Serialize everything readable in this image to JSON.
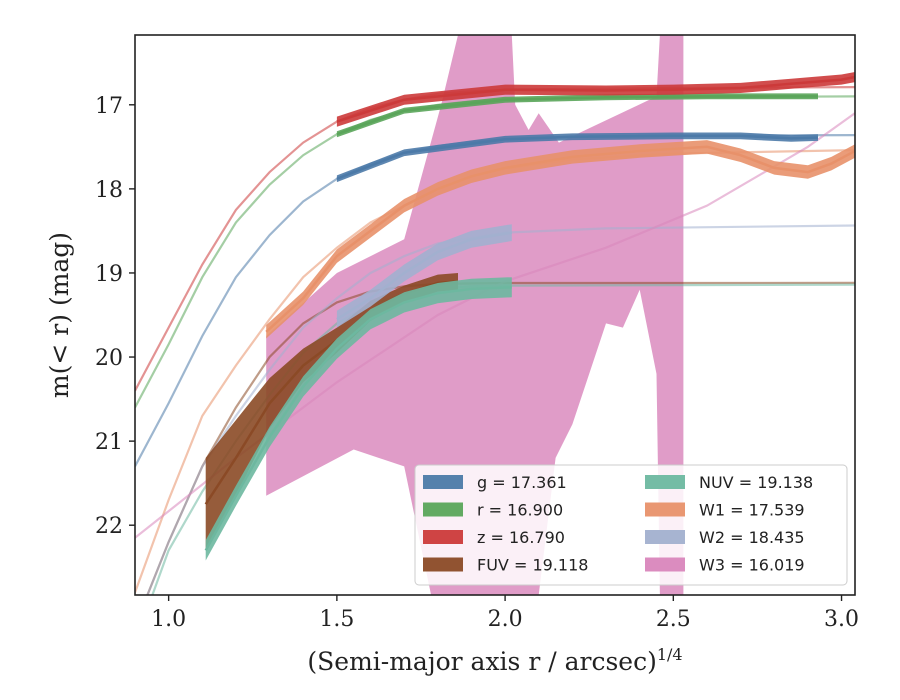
{
  "chart_data": {
    "type": "line",
    "xlabel": "(Semi-major axis r / arcsec)",
    "xlabel_sup": "1/4",
    "ylabel": "m(< r) (mag)",
    "xlim": [
      0.9,
      3.04
    ],
    "ylim": [
      22.83,
      16.17
    ],
    "xticks": [
      1.0,
      1.5,
      2.0,
      2.5,
      3.0
    ],
    "xtick_labels": [
      "1.0",
      "1.5",
      "2.0",
      "2.5",
      "3.0"
    ],
    "yticks": [
      17,
      18,
      19,
      20,
      21,
      22
    ],
    "ytick_labels": [
      "17",
      "18",
      "19",
      "20",
      "21",
      "22"
    ],
    "legend_position": "lower-right",
    "series": [
      {
        "band": "g",
        "label": "g = 17.361",
        "color": "#4c7aa8",
        "model": [
          [
            0.9,
            21.3
          ],
          [
            1.0,
            20.55
          ],
          [
            1.1,
            19.75
          ],
          [
            1.2,
            19.05
          ],
          [
            1.3,
            18.55
          ],
          [
            1.4,
            18.15
          ],
          [
            1.5,
            17.88
          ],
          [
            1.6,
            17.7
          ],
          [
            1.7,
            17.57
          ],
          [
            1.8,
            17.49
          ],
          [
            1.9,
            17.44
          ],
          [
            2.0,
            17.41
          ],
          [
            2.2,
            17.38
          ],
          [
            2.4,
            17.37
          ],
          [
            2.6,
            17.365
          ],
          [
            3.04,
            17.361
          ]
        ],
        "data": [
          [
            1.5,
            17.88
          ],
          [
            1.7,
            17.57
          ],
          [
            2.0,
            17.41
          ],
          [
            2.2,
            17.38
          ],
          [
            2.5,
            17.37
          ],
          [
            2.7,
            17.37
          ],
          [
            2.85,
            17.4
          ],
          [
            2.93,
            17.39
          ]
        ],
        "band_width": 0.04
      },
      {
        "band": "r",
        "label": "r = 16.900",
        "color": "#5aa55a",
        "model": [
          [
            0.9,
            20.6
          ],
          [
            1.0,
            19.85
          ],
          [
            1.1,
            19.05
          ],
          [
            1.2,
            18.4
          ],
          [
            1.3,
            17.95
          ],
          [
            1.4,
            17.6
          ],
          [
            1.5,
            17.35
          ],
          [
            1.6,
            17.18
          ],
          [
            1.7,
            17.07
          ],
          [
            1.8,
            17.0
          ],
          [
            1.9,
            16.96
          ],
          [
            2.0,
            16.94
          ],
          [
            2.2,
            16.92
          ],
          [
            2.5,
            16.91
          ],
          [
            3.04,
            16.9
          ]
        ],
        "data": [
          [
            1.5,
            17.35
          ],
          [
            1.7,
            17.07
          ],
          [
            2.0,
            16.94
          ],
          [
            2.3,
            16.91
          ],
          [
            2.6,
            16.9
          ],
          [
            2.8,
            16.9
          ],
          [
            2.93,
            16.9
          ]
        ],
        "band_width": 0.035
      },
      {
        "band": "z",
        "label": "z = 16.790",
        "color": "#cc3a3a",
        "model": [
          [
            0.9,
            20.4
          ],
          [
            1.0,
            19.65
          ],
          [
            1.1,
            18.9
          ],
          [
            1.2,
            18.25
          ],
          [
            1.3,
            17.8
          ],
          [
            1.4,
            17.45
          ],
          [
            1.5,
            17.2
          ],
          [
            1.6,
            17.04
          ],
          [
            1.7,
            16.94
          ],
          [
            1.8,
            16.87
          ],
          [
            1.9,
            16.84
          ],
          [
            2.0,
            16.82
          ],
          [
            2.2,
            16.81
          ],
          [
            2.5,
            16.8
          ],
          [
            3.04,
            16.79
          ]
        ],
        "data": [
          [
            1.5,
            17.2
          ],
          [
            1.7,
            16.94
          ],
          [
            2.0,
            16.82
          ],
          [
            2.3,
            16.83
          ],
          [
            2.5,
            16.82
          ],
          [
            2.7,
            16.8
          ],
          [
            2.85,
            16.75
          ],
          [
            3.0,
            16.7
          ],
          [
            3.04,
            16.67
          ]
        ],
        "band_width": 0.06
      },
      {
        "band": "FUV",
        "label": "FUV = 19.118",
        "color": "#8b4a26",
        "model": [
          [
            0.9,
            23.2
          ],
          [
            1.0,
            22.2
          ],
          [
            1.1,
            21.3
          ],
          [
            1.2,
            20.6
          ],
          [
            1.3,
            20.0
          ],
          [
            1.4,
            19.6
          ],
          [
            1.5,
            19.35
          ],
          [
            1.6,
            19.22
          ],
          [
            1.7,
            19.16
          ],
          [
            1.8,
            19.13
          ],
          [
            2.0,
            19.12
          ],
          [
            3.04,
            19.118
          ]
        ],
        "data": [
          [
            1.11,
            21.75
          ],
          [
            1.2,
            21.2
          ],
          [
            1.3,
            20.55
          ],
          [
            1.4,
            20.1
          ],
          [
            1.5,
            19.8
          ],
          [
            1.6,
            19.45
          ],
          [
            1.7,
            19.25
          ],
          [
            1.8,
            19.12
          ],
          [
            1.86,
            19.1
          ]
        ],
        "band_width": [
          0.55,
          0.45,
          0.3,
          0.2,
          0.15,
          0.12,
          0.1,
          0.1,
          0.1
        ]
      },
      {
        "band": "NUV",
        "label": "NUV = 19.138",
        "color": "#6db8a0",
        "model": [
          [
            0.9,
            23.4
          ],
          [
            1.0,
            22.3
          ],
          [
            1.1,
            21.6
          ],
          [
            1.2,
            21.0
          ],
          [
            1.3,
            20.45
          ],
          [
            1.4,
            19.95
          ],
          [
            1.5,
            19.6
          ],
          [
            1.6,
            19.38
          ],
          [
            1.7,
            19.25
          ],
          [
            1.8,
            19.19
          ],
          [
            1.9,
            19.16
          ],
          [
            2.0,
            19.15
          ],
          [
            3.04,
            19.138
          ]
        ],
        "data": [
          [
            1.11,
            22.3
          ],
          [
            1.2,
            21.65
          ],
          [
            1.3,
            20.95
          ],
          [
            1.4,
            20.35
          ],
          [
            1.5,
            19.9
          ],
          [
            1.6,
            19.55
          ],
          [
            1.7,
            19.35
          ],
          [
            1.8,
            19.24
          ],
          [
            1.9,
            19.19
          ],
          [
            2.02,
            19.17
          ]
        ],
        "band_width": 0.12
      },
      {
        "band": "W1",
        "label": "W1 = 17.539",
        "color": "#e8916a",
        "model": [
          [
            0.9,
            22.8
          ],
          [
            1.0,
            21.7
          ],
          [
            1.1,
            20.7
          ],
          [
            1.2,
            20.1
          ],
          [
            1.3,
            19.55
          ],
          [
            1.4,
            19.05
          ],
          [
            1.5,
            18.7
          ],
          [
            1.6,
            18.4
          ],
          [
            1.7,
            18.2
          ],
          [
            1.8,
            18.0
          ],
          [
            1.9,
            17.85
          ],
          [
            2.0,
            17.76
          ],
          [
            2.2,
            17.65
          ],
          [
            2.5,
            17.58
          ],
          [
            3.04,
            17.539
          ]
        ],
        "data": [
          [
            1.29,
            19.7
          ],
          [
            1.4,
            19.3
          ],
          [
            1.5,
            18.8
          ],
          [
            1.6,
            18.5
          ],
          [
            1.7,
            18.2
          ],
          [
            1.8,
            18.0
          ],
          [
            1.9,
            17.85
          ],
          [
            2.0,
            17.75
          ],
          [
            2.2,
            17.62
          ],
          [
            2.4,
            17.55
          ],
          [
            2.6,
            17.5
          ],
          [
            2.7,
            17.6
          ],
          [
            2.8,
            17.75
          ],
          [
            2.9,
            17.8
          ],
          [
            2.97,
            17.7
          ],
          [
            3.04,
            17.55
          ]
        ],
        "band_width": 0.08
      },
      {
        "band": "W2",
        "label": "W2 = 18.435",
        "color": "#a2b0cf",
        "model": [
          [
            0.9,
            23.2
          ],
          [
            1.0,
            22.2
          ],
          [
            1.1,
            21.3
          ],
          [
            1.2,
            20.7
          ],
          [
            1.3,
            20.15
          ],
          [
            1.4,
            19.65
          ],
          [
            1.5,
            19.3
          ],
          [
            1.6,
            19.0
          ],
          [
            1.7,
            18.8
          ],
          [
            1.8,
            18.65
          ],
          [
            2.0,
            18.52
          ],
          [
            2.3,
            18.47
          ],
          [
            3.04,
            18.435
          ]
        ],
        "data": [
          [
            1.5,
            19.55
          ],
          [
            1.6,
            19.3
          ],
          [
            1.7,
            19.0
          ],
          [
            1.8,
            18.75
          ],
          [
            1.9,
            18.6
          ],
          [
            2.02,
            18.52
          ]
        ],
        "band_width": 0.1
      },
      {
        "band": "W3",
        "label": "W3 = 16.019",
        "color": "#d986bc",
        "model": [
          [
            0.9,
            22.15
          ],
          [
            1.2,
            21.2
          ],
          [
            1.5,
            20.3
          ],
          [
            1.8,
            19.5
          ],
          [
            2.0,
            19.1
          ],
          [
            2.3,
            18.7
          ],
          [
            2.6,
            18.2
          ],
          [
            2.9,
            17.5
          ],
          [
            3.04,
            17.1
          ]
        ],
        "band_upper": [
          [
            1.29,
            19.75
          ],
          [
            1.5,
            19.0
          ],
          [
            1.7,
            18.6
          ],
          [
            1.81,
            17.0
          ],
          [
            1.86,
            16.17
          ],
          [
            2.02,
            16.17
          ],
          [
            2.03,
            17.0
          ],
          [
            2.07,
            17.3
          ],
          [
            2.1,
            17.1
          ],
          [
            2.16,
            17.45
          ],
          [
            2.45,
            16.9
          ],
          [
            2.46,
            16.17
          ],
          [
            2.53,
            16.17
          ],
          [
            2.53,
            22.83
          ],
          [
            2.46,
            22.83
          ]
        ],
        "band_lower": [
          [
            2.46,
            22.83
          ],
          [
            2.45,
            20.2
          ],
          [
            2.4,
            19.2
          ],
          [
            2.35,
            19.65
          ],
          [
            2.3,
            19.6
          ],
          [
            2.2,
            20.8
          ],
          [
            2.15,
            21.2
          ],
          [
            2.1,
            22.83
          ],
          [
            1.78,
            22.83
          ],
          [
            1.7,
            21.3
          ],
          [
            1.55,
            21.1
          ],
          [
            1.29,
            21.65
          ]
        ]
      }
    ]
  }
}
